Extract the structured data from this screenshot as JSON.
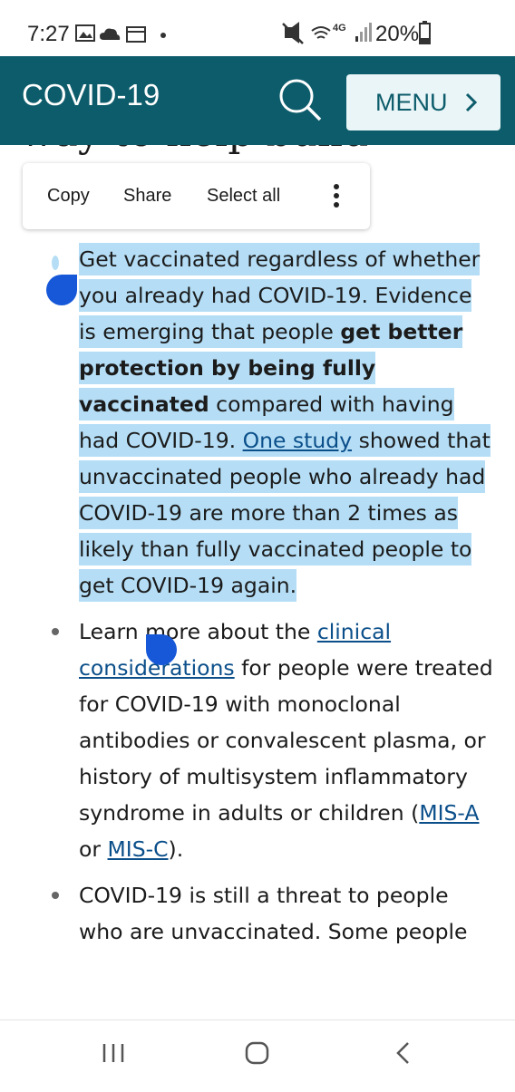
{
  "status_bar": {
    "time": "7:27",
    "network": "4G",
    "battery": "20%"
  },
  "header": {
    "title": "COVID-19",
    "menu_button": "MENU"
  },
  "partial_heading": "way to help build",
  "context_menu": {
    "items": [
      "Copy",
      "Share",
      "Select all"
    ]
  },
  "bullets": [
    {
      "selected": true,
      "runs": [
        {
          "text": "Get vaccinated regardless of whether you already had COVID-19. Evidence is emerging that people ",
          "style": "plain"
        },
        {
          "text": "get better protection by being fully vaccinated",
          "style": "bold"
        },
        {
          "text": " compared with having had COVID-19. ",
          "style": "plain"
        },
        {
          "text": "One study",
          "style": "link"
        },
        {
          "text": " showed that unvaccinated people who already had COVID-19 are more than 2 times as likely than fully vaccinated people to get COVID-19 again.",
          "style": "plain"
        }
      ]
    },
    {
      "selected": false,
      "runs": [
        {
          "text": "Learn more about the ",
          "style": "plain"
        },
        {
          "text": "clinical considerations",
          "style": "link"
        },
        {
          "text": " for people were treated for COVID-19 with monoclonal antibodies or convalescent plasma, or history of multisystem inflammatory syndrome in adults or children (",
          "style": "plain"
        },
        {
          "text": "MIS-A",
          "style": "link"
        },
        {
          "text": " or ",
          "style": "plain"
        },
        {
          "text": "MIS-C",
          "style": "link"
        },
        {
          "text": ").",
          "style": "plain"
        }
      ]
    },
    {
      "selected": false,
      "runs": [
        {
          "text": "COVID-19 is still a threat to people who are unvaccinated. Some people",
          "style": "plain"
        }
      ]
    }
  ]
}
